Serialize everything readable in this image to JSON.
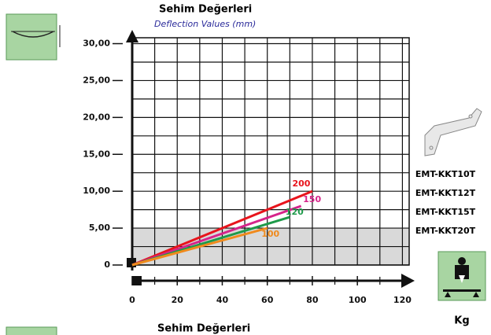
{
  "chart_data": {
    "type": "line",
    "title": "Sehim Değerleri",
    "subtitle": "Deflection Values (mm)",
    "x_label": "Kg",
    "xlim": [
      0,
      123
    ],
    "ylim": [
      0,
      30.8
    ],
    "xticks": [
      0,
      20,
      40,
      60,
      80,
      100,
      120
    ],
    "x_minor_ticks": [
      10,
      30,
      50,
      70,
      90,
      110
    ],
    "yticks": [
      0,
      {
        "value": 5,
        "label": "5,00"
      },
      {
        "value": 10,
        "label": "10,00"
      },
      {
        "value": 15,
        "label": "15,00"
      },
      {
        "value": 20,
        "label": "20,00"
      },
      {
        "value": 25,
        "label": "25,00"
      },
      {
        "value": 30,
        "label": "30,00"
      }
    ],
    "y_minor_ticks": [
      2.5,
      7.5,
      12.5,
      17.5,
      22.5,
      27.5
    ],
    "grid": true,
    "band": {
      "from": 0,
      "to": 5,
      "color": "#d9d9d9"
    },
    "series": [
      {
        "name": "200",
        "color": "#e8141c",
        "x": [
          0,
          80
        ],
        "values": [
          0,
          10
        ]
      },
      {
        "name": "150",
        "color": "#d6248a",
        "x": [
          0,
          75
        ],
        "values": [
          0,
          8
        ]
      },
      {
        "name": "120",
        "color": "#1e9a4a",
        "x": [
          0,
          70
        ],
        "values": [
          0,
          6.5
        ]
      },
      {
        "name": "100",
        "color": "#f08a1c",
        "x": [
          0,
          60
        ],
        "values": [
          0,
          5
        ]
      }
    ]
  },
  "products": [
    "EMT-KKT10T",
    "EMT-KKT12T",
    "EMT-KKT15T",
    "EMT-KKT20T"
  ],
  "next_section_title": "Sehim Değerleri"
}
